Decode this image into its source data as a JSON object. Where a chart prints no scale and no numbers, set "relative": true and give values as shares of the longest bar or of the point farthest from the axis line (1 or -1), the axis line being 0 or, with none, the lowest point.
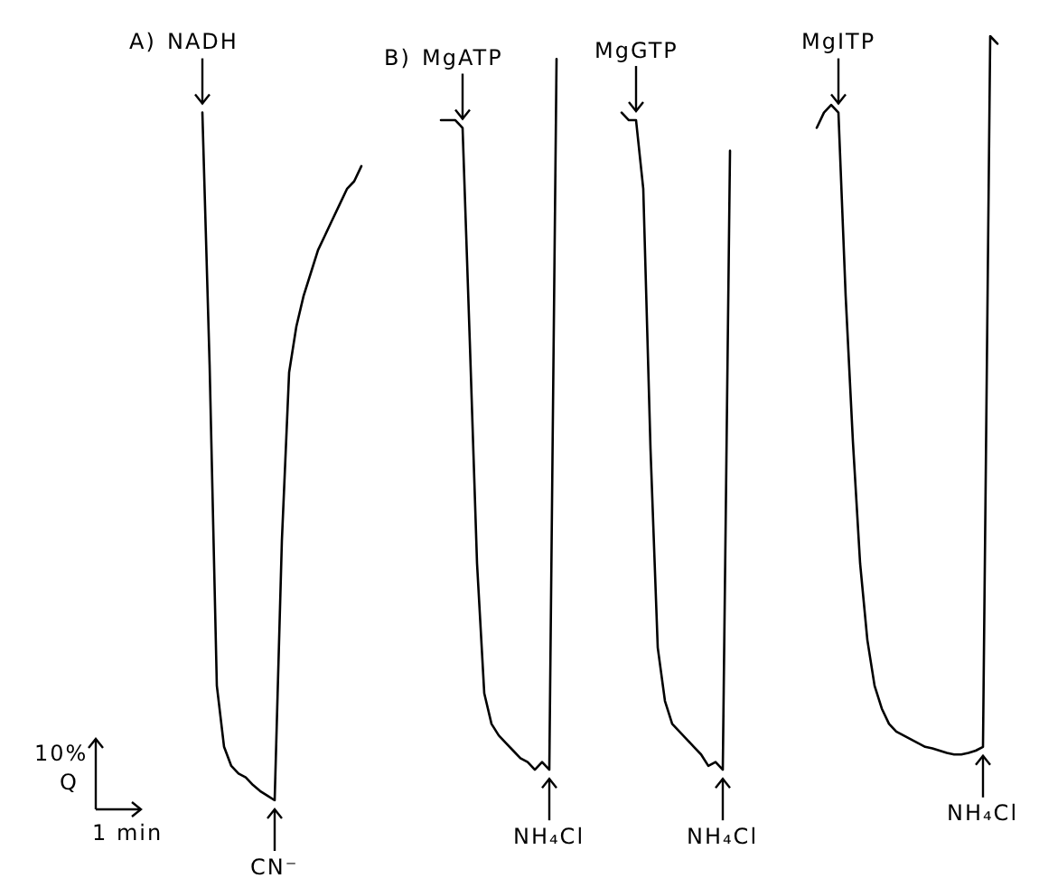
{
  "chart_data": {
    "type": "line",
    "relative": true,
    "marker": "none",
    "line_style": "solid",
    "categories": [
      null,
      null,
      null,
      null,
      null,
      null,
      null,
      null,
      null,
      null,
      null,
      null,
      null,
      null,
      null,
      null,
      null,
      null,
      null,
      null,
      null,
      null,
      null,
      null,
      null,
      null,
      null,
      null,
      null,
      null,
      null,
      null,
      null,
      null,
      null,
      null,
      null,
      null,
      null,
      null,
      null,
      null,
      null,
      null,
      null,
      null,
      null,
      null,
      null,
      null,
      null,
      null,
      null,
      null,
      null,
      null,
      null,
      null,
      null,
      null,
      null,
      null,
      null,
      null,
      null,
      null,
      null,
      null,
      null,
      null,
      null,
      null,
      null,
      null,
      null,
      null,
      null,
      null,
      null,
      null,
      null,
      null,
      null,
      null,
      null,
      null,
      null,
      null,
      null,
      null,
      null,
      null,
      null,
      null,
      null,
      null,
      null,
      null,
      null,
      null,
      null,
      null,
      null,
      null,
      null,
      null,
      null,
      null,
      null,
      null,
      null
    ],
    "series": [
      {
        "color": "#000000",
        "values": [
          0.9,
          0.57,
          0.15,
          0.07,
          0.045,
          0.035,
          0.03,
          0.02,
          0.012,
          0.006,
          0,
          0.34,
          0.56,
          0.62,
          0.66,
          0.69,
          0.72,
          0.74,
          0.76,
          0.78,
          0.8,
          0.81,
          0.83,
          null,
          null,
          null,
          null,
          null,
          null,
          null,
          null,
          null,
          null,
          null,
          null,
          null,
          null,
          null,
          null,
          null,
          null,
          null,
          null,
          null,
          null,
          null,
          null,
          null,
          null,
          null,
          null,
          null,
          null,
          null,
          null,
          null,
          null,
          null,
          null,
          null,
          null,
          null,
          null,
          null,
          null,
          null,
          null,
          null,
          null,
          null,
          null,
          null,
          null,
          null,
          null,
          null,
          null,
          null,
          null,
          null,
          null,
          null,
          null,
          null,
          null,
          null,
          null,
          null,
          null,
          null,
          null,
          null,
          null,
          null,
          null,
          null,
          null,
          null,
          null,
          null,
          null,
          null,
          null,
          null,
          null,
          null,
          null,
          null,
          null,
          null,
          null
        ]
      },
      {
        "color": "#000000",
        "values": [
          null,
          null,
          null,
          null,
          null,
          null,
          null,
          null,
          null,
          null,
          null,
          null,
          null,
          null,
          null,
          null,
          null,
          null,
          null,
          null,
          null,
          null,
          null,
          null,
          null,
          null,
          null,
          null,
          null,
          null,
          null,
          null,
          null,
          0.89,
          0.89,
          0.89,
          0.88,
          0.6,
          0.31,
          0.14,
          0.1,
          0.085,
          0.075,
          0.065,
          0.055,
          0.05,
          0.04,
          0.05,
          0.04,
          0.97,
          null,
          null,
          null,
          null,
          null,
          null,
          null,
          null,
          null,
          null,
          null,
          null,
          null,
          null,
          null,
          null,
          null,
          null,
          null,
          null,
          null,
          null,
          null,
          null,
          null,
          null,
          null,
          null,
          null,
          null,
          null,
          null,
          null,
          null,
          null,
          null,
          null,
          null,
          null,
          null,
          null,
          null,
          null,
          null,
          null,
          null,
          null,
          null,
          null,
          null,
          null,
          null,
          null,
          null,
          null,
          null,
          null,
          null,
          null,
          null,
          null
        ]
      },
      {
        "color": "#000000",
        "values": [
          null,
          null,
          null,
          null,
          null,
          null,
          null,
          null,
          null,
          null,
          null,
          null,
          null,
          null,
          null,
          null,
          null,
          null,
          null,
          null,
          null,
          null,
          null,
          null,
          null,
          null,
          null,
          null,
          null,
          null,
          null,
          null,
          null,
          null,
          null,
          null,
          null,
          null,
          null,
          null,
          null,
          null,
          null,
          null,
          null,
          null,
          null,
          null,
          null,
          null,
          null,
          null,
          null,
          null,
          null,
          null,
          null,
          null,
          0.9,
          0.89,
          0.89,
          0.8,
          0.46,
          0.2,
          0.13,
          0.1,
          0.09,
          0.08,
          0.07,
          0.06,
          0.045,
          0.05,
          0.04,
          0.85,
          null,
          null,
          null,
          null,
          null,
          null,
          null,
          null,
          null,
          null,
          null,
          null,
          null,
          null,
          null,
          null,
          null,
          null,
          null,
          null,
          null,
          null,
          null,
          null,
          null,
          null,
          null,
          null,
          null,
          null,
          null,
          null,
          null,
          null,
          null,
          null,
          null
        ]
      },
      {
        "color": "#000000",
        "values": [
          null,
          null,
          null,
          null,
          null,
          null,
          null,
          null,
          null,
          null,
          null,
          null,
          null,
          null,
          null,
          null,
          null,
          null,
          null,
          null,
          null,
          null,
          null,
          null,
          null,
          null,
          null,
          null,
          null,
          null,
          null,
          null,
          null,
          null,
          null,
          null,
          null,
          null,
          null,
          null,
          null,
          null,
          null,
          null,
          null,
          null,
          null,
          null,
          null,
          null,
          null,
          null,
          null,
          null,
          null,
          null,
          null,
          null,
          null,
          null,
          null,
          null,
          null,
          null,
          null,
          null,
          null,
          null,
          null,
          null,
          null,
          null,
          null,
          null,
          null,
          null,
          null,
          null,
          null,
          null,
          null,
          null,
          null,
          null,
          null,
          0.88,
          0.9,
          0.91,
          0.9,
          0.66,
          0.47,
          0.31,
          0.21,
          0.15,
          0.12,
          0.1,
          0.09,
          0.085,
          0.08,
          0.075,
          0.07,
          0.068,
          0.065,
          0.062,
          0.06,
          0.06,
          0.062,
          0.065,
          0.07,
          1.0,
          0.99
        ]
      }
    ],
    "annotations": [
      "A)",
      "B)",
      "10%",
      "Q",
      "1 min",
      "NADH",
      "MgATP",
      "MgGTP",
      "MgITP",
      "CN⁻",
      "NH₄Cl",
      "NH₄Cl",
      "NH₄Cl"
    ]
  }
}
